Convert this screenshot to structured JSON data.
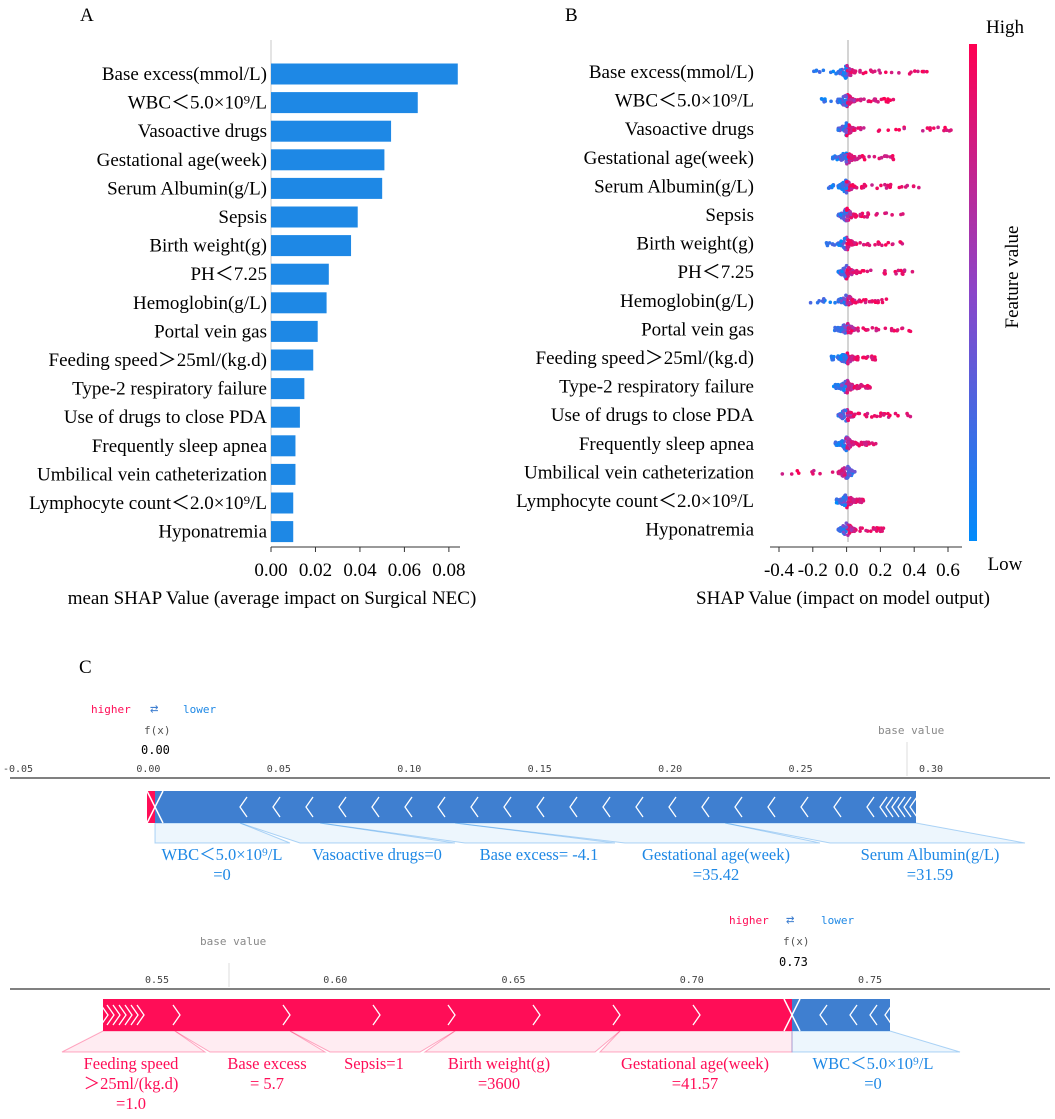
{
  "panel_labels": {
    "a": "A",
    "b": "B",
    "c": "C"
  },
  "colors": {
    "bar_blue": "#1e88e5",
    "pink": "#ff0d57",
    "force_blue": "#3f7fd0",
    "neg_text": "#1e88e5",
    "pos_text": "#ff0d57"
  },
  "chart_data": [
    {
      "panel": "A",
      "type": "bar",
      "orientation": "horizontal",
      "categories": [
        "Base excess(mmol/L)",
        "WBC＜5.0×10⁹/L",
        "Vasoactive drugs",
        "Gestational age(week)",
        "Serum Albumin(g/L)",
        "Sepsis",
        "Birth weight(g)",
        "PH＜7.25",
        "Hemoglobin(g/L)",
        "Portal vein gas",
        "Feeding speed＞25ml/(kg.d)",
        "Type-2 respiratory failure",
        "Use of drugs to close PDA",
        "Frequently sleep apnea",
        "Umbilical vein catheterization",
        "Lymphocyte count＜2.0×10⁹/L",
        "Hyponatremia"
      ],
      "values": [
        0.084,
        0.066,
        0.054,
        0.051,
        0.05,
        0.039,
        0.036,
        0.026,
        0.025,
        0.021,
        0.019,
        0.015,
        0.013,
        0.011,
        0.011,
        0.01,
        0.01
      ],
      "xlabel": "mean SHAP Value (average impact on Surgical NEC)",
      "xlim": [
        0,
        0.085
      ],
      "xticks": [
        0.0,
        0.02,
        0.04,
        0.06,
        0.08
      ],
      "xtick_labels": [
        "0.00",
        "0.02",
        "0.04",
        "0.06",
        "0.08"
      ]
    },
    {
      "panel": "B",
      "type": "scatter",
      "subtype": "shap-beeswarm",
      "categories": [
        "Base excess(mmol/L)",
        "WBC＜5.0×10⁹/L",
        "Vasoactive drugs",
        "Gestational age(week)",
        "Serum Albumin(g/L)",
        "Sepsis",
        "Birth weight(g)",
        "PH＜7.25",
        "Hemoglobin(g/L)",
        "Portal vein gas",
        "Feeding speed＞25ml/(kg.d)",
        "Type-2 respiratory failure",
        "Use of drugs to close PDA",
        "Frequently sleep apnea",
        "Umbilical vein catheterization",
        "Lymphocyte count＜2.0×10⁹/L",
        "Hyponatremia"
      ],
      "value_ranges": [
        [
          -0.2,
          0.5
        ],
        [
          -0.15,
          0.3
        ],
        [
          -0.02,
          0.63
        ],
        [
          -0.1,
          0.28
        ],
        [
          -0.12,
          0.45
        ],
        [
          -0.05,
          0.35
        ],
        [
          -0.15,
          0.33
        ],
        [
          -0.02,
          0.4
        ],
        [
          -0.22,
          0.27
        ],
        [
          -0.08,
          0.39
        ],
        [
          -0.1,
          0.17
        ],
        [
          -0.08,
          0.14
        ],
        [
          -0.05,
          0.4
        ],
        [
          -0.07,
          0.18
        ],
        [
          -0.4,
          0.02
        ],
        [
          -0.06,
          0.1
        ],
        [
          -0.02,
          0.22
        ]
      ],
      "xlabel": "SHAP Value (impact on model output)",
      "xlim": [
        -0.42,
        0.66
      ],
      "xticks": [
        -0.4,
        -0.2,
        0.0,
        0.2,
        0.4,
        0.6
      ],
      "xtick_labels": [
        "-0.4",
        "-0.2",
        "0.0",
        "0.2",
        "0.4",
        "0.6"
      ],
      "colorbar": {
        "label": "Feature value",
        "high": "High",
        "low": "Low"
      }
    },
    {
      "panel": "C1",
      "type": "bar",
      "subtype": "shap-force",
      "higher_label": "higher",
      "lower_label": "lower",
      "arrows": "⇄",
      "fx_label": "f(x)",
      "fx_value": "0.00",
      "fx": 0.0,
      "base_value_label": "base value",
      "base_value": 0.293,
      "xlim": [
        -0.055,
        0.345
      ],
      "xticks": [
        -0.05,
        0.0,
        0.05,
        0.1,
        0.15,
        0.2,
        0.25,
        0.3
      ],
      "xtick_labels": [
        "-0.05",
        "0.00",
        "0.05",
        "0.10",
        "0.15",
        "0.20",
        "0.25",
        "0.30"
      ],
      "positive_features": [],
      "negative_features": [
        {
          "name": "WBC＜5.0×10⁹/L",
          "value": "=0"
        },
        {
          "name": "Vasoactive drugs=0",
          "value": ""
        },
        {
          "name": "Base excess= -4.1",
          "value": ""
        },
        {
          "name": "Gestational age(week)",
          "value": "=35.42"
        },
        {
          "name": "Serum Albumin(g/L)",
          "value": "=31.59"
        }
      ]
    },
    {
      "panel": "C2",
      "type": "bar",
      "subtype": "shap-force",
      "higher_label": "higher",
      "lower_label": "lower",
      "arrows": "⇄",
      "fx_label": "f(x)",
      "fx_value": "0.73",
      "fx": 0.73,
      "base_value_label": "base value",
      "base_value": 0.572,
      "xlim": [
        0.52,
        0.79
      ],
      "xticks": [
        0.55,
        0.6,
        0.65,
        0.7,
        0.75
      ],
      "xtick_labels": [
        "0.55",
        "0.60",
        "0.65",
        "0.70",
        "0.75"
      ],
      "positive_features": [
        {
          "name": "Feeding speed",
          "value": "＞25ml/(kg.d)",
          "extra": "=1.0"
        },
        {
          "name": "Base excess",
          "value": "= 5.7"
        },
        {
          "name": "Sepsis=1",
          "value": ""
        },
        {
          "name": "Birth weight(g)",
          "value": "=3600"
        },
        {
          "name": "Gestational age(week)",
          "value": "=41.57"
        }
      ],
      "negative_features": [
        {
          "name": "WBC＜5.0×10⁹/L",
          "value": "=0"
        }
      ]
    }
  ]
}
